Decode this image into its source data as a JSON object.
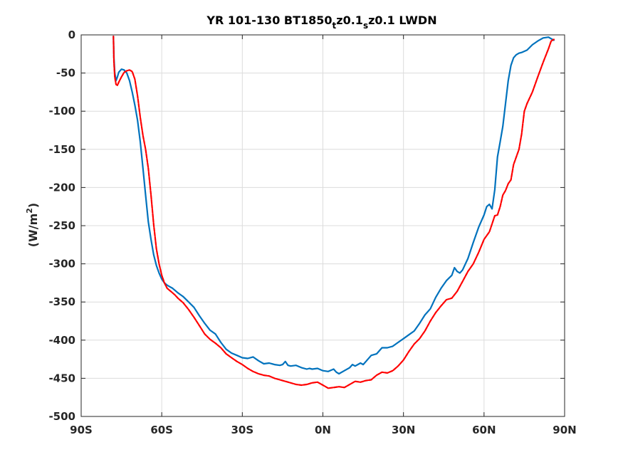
{
  "chart_data": {
    "type": "line",
    "title": "YR 101-130 BT1850tz0.1sz0.1 LWDN",
    "title_parts": {
      "a": "YR 101-130 BT1850",
      "b": "t",
      "c": "z0.1",
      "d": "s",
      "e": "z0.1 LWDN"
    },
    "xlabel": "",
    "ylabel": "(W/m2)",
    "ylabel_parts": {
      "a": "(W/m",
      "b": "2",
      "c": ")"
    },
    "xlim": [
      -90,
      90
    ],
    "ylim": [
      -500,
      0
    ],
    "grid": true,
    "x_ticks": [
      -90,
      -60,
      -30,
      0,
      30,
      60,
      90
    ],
    "x_tick_labels": [
      "90S",
      "60S",
      "30S",
      "0N",
      "30N",
      "60N",
      "90N"
    ],
    "y_ticks": [
      0,
      -50,
      -100,
      -150,
      -200,
      -250,
      -300,
      -350,
      -400,
      -450,
      -500
    ],
    "y_tick_labels": [
      "0",
      "-50",
      "-100",
      "-150",
      "-200",
      "-250",
      "-300",
      "-350",
      "-400",
      "-450",
      "-500"
    ],
    "series": [
      {
        "color": "#0072BD",
        "style": "solid",
        "x": [
          -78,
          -77.8,
          -77.5,
          -77,
          -76.5,
          -76,
          -75,
          -74,
          -73,
          -72,
          -71,
          -70,
          -69,
          -68,
          -67,
          -66,
          -65,
          -64,
          -63,
          -62,
          -61,
          -60,
          -59,
          -58,
          -57,
          -56,
          -55,
          -54,
          -52,
          -50,
          -48,
          -46,
          -44,
          -42,
          -40,
          -38,
          -36,
          -34,
          -32,
          -30,
          -28,
          -26,
          -24,
          -22,
          -20,
          -18,
          -16,
          -15,
          -14,
          -13,
          -12,
          -10,
          -8,
          -6,
          -5,
          -4,
          -2,
          0,
          2,
          4,
          5,
          6,
          8,
          10,
          11,
          12,
          14,
          15,
          16,
          18,
          20,
          22,
          24,
          26,
          28,
          30,
          32,
          34,
          36,
          38,
          40,
          42,
          44,
          46,
          48,
          49,
          50,
          51,
          52,
          54,
          56,
          58,
          60,
          61,
          62,
          63,
          64,
          65,
          66,
          67,
          68,
          69,
          70,
          71,
          72,
          73,
          74,
          76,
          78,
          80,
          82,
          84,
          85,
          86
        ],
        "y": [
          -2,
          -30,
          -50,
          -60,
          -55,
          -49,
          -45,
          -46,
          -50,
          -60,
          -75,
          -92,
          -112,
          -140,
          -175,
          -210,
          -245,
          -268,
          -288,
          -302,
          -312,
          -320,
          -325,
          -328,
          -330,
          -332,
          -335,
          -338,
          -343,
          -350,
          -357,
          -368,
          -378,
          -387,
          -392,
          -403,
          -412,
          -417,
          -420,
          -423,
          -424,
          -422,
          -427,
          -431,
          -430,
          -432,
          -433,
          -432,
          -428,
          -433,
          -434,
          -433,
          -436,
          -438,
          -437,
          -438,
          -437,
          -440,
          -441,
          -438,
          -442,
          -444,
          -440,
          -436,
          -432,
          -434,
          -430,
          -432,
          -428,
          -420,
          -418,
          -410,
          -410,
          -408,
          -403,
          -398,
          -393,
          -388,
          -378,
          -367,
          -359,
          -344,
          -332,
          -322,
          -315,
          -305,
          -310,
          -312,
          -308,
          -293,
          -272,
          -252,
          -236,
          -225,
          -222,
          -228,
          -203,
          -160,
          -140,
          -120,
          -90,
          -60,
          -40,
          -30,
          -26,
          -24,
          -23,
          -20,
          -13,
          -8,
          -4,
          -3,
          -5,
          -7
        ]
      },
      {
        "color": "#FF0000",
        "style": "dashed",
        "x": [
          -78,
          -77.8,
          -77.5,
          -77,
          -76.5,
          -76,
          -75,
          -74,
          -73,
          -72,
          -71,
          -70,
          -69,
          -68,
          -67,
          -66,
          -65,
          -64,
          -63,
          -62,
          -61,
          -60,
          -59,
          -58,
          -57,
          -56,
          -55,
          -54,
          -52,
          -50,
          -48,
          -46,
          -44,
          -42,
          -40,
          -38,
          -36,
          -34,
          -32,
          -30,
          -28,
          -26,
          -24,
          -22,
          -20,
          -18,
          -16,
          -14,
          -12,
          -10,
          -8,
          -6,
          -4,
          -2,
          0,
          2,
          4,
          6,
          8,
          10,
          12,
          14,
          16,
          18,
          20,
          22,
          24,
          26,
          28,
          30,
          32,
          34,
          36,
          38,
          40,
          42,
          44,
          46,
          48,
          50,
          52,
          54,
          56,
          58,
          60,
          62,
          64,
          65,
          66,
          67,
          68,
          69,
          70,
          71,
          72,
          73,
          74,
          75,
          76,
          78,
          80,
          82,
          84,
          85,
          86
        ],
        "y": [
          -2,
          -35,
          -55,
          -65,
          -66,
          -62,
          -55,
          -49,
          -47,
          -46,
          -48,
          -58,
          -80,
          -108,
          -132,
          -150,
          -175,
          -210,
          -248,
          -280,
          -300,
          -315,
          -325,
          -332,
          -335,
          -338,
          -341,
          -345,
          -351,
          -360,
          -370,
          -381,
          -392,
          -399,
          -404,
          -410,
          -418,
          -423,
          -428,
          -432,
          -437,
          -441,
          -444,
          -446,
          -447,
          -450,
          -452,
          -454,
          -456,
          -458,
          -459,
          -458,
          -456,
          -455,
          -459,
          -463,
          -462,
          -461,
          -462,
          -458,
          -454,
          -455,
          -453,
          -452,
          -446,
          -442,
          -443,
          -440,
          -434,
          -426,
          -415,
          -405,
          -398,
          -388,
          -375,
          -364,
          -355,
          -347,
          -345,
          -336,
          -323,
          -310,
          -300,
          -285,
          -268,
          -258,
          -237,
          -236,
          -225,
          -210,
          -204,
          -195,
          -190,
          -170,
          -160,
          -150,
          -130,
          -100,
          -90,
          -75,
          -55,
          -36,
          -18,
          -8,
          -6
        ]
      }
    ]
  }
}
